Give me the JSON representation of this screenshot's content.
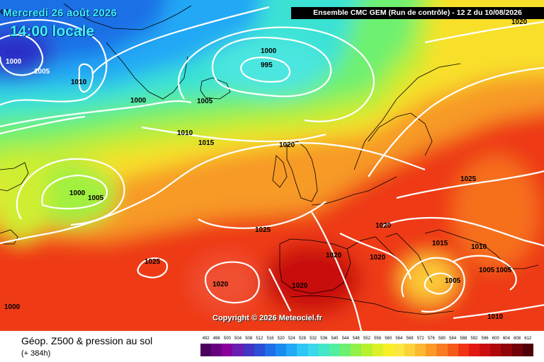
{
  "header": {
    "date": "Mercredi 26 août 2026",
    "local_time": "14:00 locale",
    "run_info": "Ensemble CMC GEM  (Run de contrôle)  -  12 Z du 10/08/2026"
  },
  "footer": {
    "copyright": "Copyright © 2026 Meteociel.fr",
    "title": "Géop. Z500 & pression au sol",
    "lead_time": "(+ 384h)"
  },
  "isobar_labels": [
    "1000",
    "1005",
    "1010",
    "1000",
    "1000",
    "995",
    "1005",
    "1000",
    "1010",
    "1015",
    "1020",
    "1020",
    "1000",
    "1005",
    "1025",
    "1025",
    "1020",
    "1025",
    "1020",
    "1020",
    "1015",
    "1010",
    "1005",
    "1005",
    "1005",
    "1010",
    "1020",
    "1020",
    "1000"
  ],
  "scale": {
    "ticks": [
      "492",
      "496",
      "500",
      "504",
      "508",
      "512",
      "516",
      "520",
      "524",
      "528",
      "532",
      "536",
      "540",
      "544",
      "548",
      "552",
      "556",
      "560",
      "564",
      "568",
      "572",
      "576",
      "580",
      "584",
      "588",
      "592",
      "596",
      "600",
      "604",
      "608",
      "612"
    ],
    "colors": [
      "#4b0060",
      "#6a007f",
      "#88009c",
      "#6a1fb0",
      "#4236c2",
      "#2b4fd6",
      "#1f6fe6",
      "#1a8cf0",
      "#22a8f5",
      "#2ec6f5",
      "#3ad8e8",
      "#44e6c8",
      "#52eea0",
      "#6cf070",
      "#92f048",
      "#b8f030",
      "#dcf028",
      "#f8f02a",
      "#fce640",
      "#fcd23c",
      "#fcb830",
      "#fc9a28",
      "#fa7c20",
      "#f65a18",
      "#f03414",
      "#e41812",
      "#cc0e10",
      "#b0080c",
      "#90040a",
      "#700208",
      "#500006"
    ]
  }
}
